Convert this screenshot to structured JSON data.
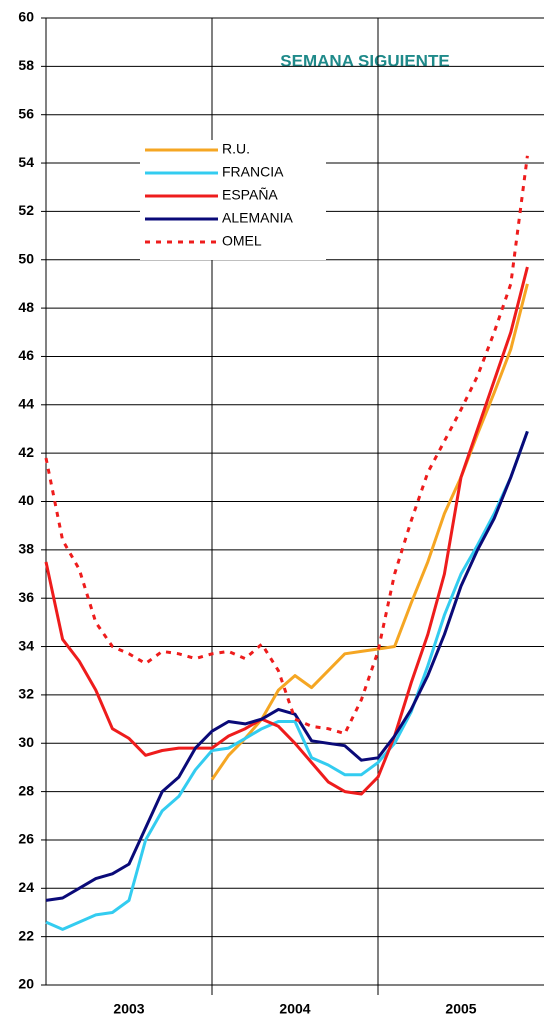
{
  "chart_data": {
    "type": "line",
    "title": "SEMANA SIGUIENTE",
    "title_color": "#1f8a8a",
    "x": [
      2003.0,
      2003.1,
      2003.2,
      2003.3,
      2003.4,
      2003.5,
      2003.6,
      2003.7,
      2003.8,
      2003.9,
      2004.0,
      2004.1,
      2004.2,
      2004.3,
      2004.4,
      2004.5,
      2004.6,
      2004.7,
      2004.8,
      2004.9,
      2005.0,
      2005.1,
      2005.2,
      2005.3,
      2005.4,
      2005.5,
      2005.6,
      2005.7,
      2005.8,
      2005.9
    ],
    "xlim": [
      2003,
      2006
    ],
    "xticks": [
      {
        "value": 2003.5,
        "label": "2003"
      },
      {
        "value": 2004.5,
        "label": "2004"
      },
      {
        "value": 2005.5,
        "label": "2005"
      }
    ],
    "ylim": [
      20,
      60
    ],
    "yticks": [
      20,
      22,
      24,
      26,
      28,
      30,
      32,
      34,
      36,
      38,
      40,
      42,
      44,
      46,
      48,
      50,
      52,
      54,
      56,
      58,
      60
    ],
    "grid": true,
    "legend": "upper left",
    "series": [
      {
        "name": "R.U.",
        "color": "#f5a623",
        "style": "solid",
        "values": [
          null,
          null,
          null,
          null,
          null,
          null,
          null,
          null,
          null,
          null,
          28.5,
          29.5,
          30.2,
          31.0,
          32.2,
          32.8,
          32.3,
          33.0,
          33.7,
          33.8,
          33.9,
          34.0,
          35.8,
          37.5,
          39.5,
          41.0,
          42.8,
          44.5,
          46.3,
          49.0
        ]
      },
      {
        "name": "FRANCIA",
        "color": "#33ccf0",
        "style": "solid",
        "values": [
          22.6,
          22.3,
          22.6,
          22.9,
          23.0,
          23.5,
          26.0,
          27.2,
          27.8,
          28.9,
          29.7,
          29.8,
          30.2,
          30.6,
          30.9,
          30.9,
          29.4,
          29.1,
          28.7,
          28.7,
          29.2,
          30.0,
          31.3,
          33.2,
          35.3,
          37.0,
          38.2,
          39.5,
          41.0,
          42.9
        ]
      },
      {
        "name": "ESPAÑA",
        "color": "#ee1c1c",
        "style": "solid",
        "values": [
          37.5,
          34.3,
          33.4,
          32.2,
          30.6,
          30.2,
          29.5,
          29.7,
          29.8,
          29.8,
          29.8,
          30.3,
          30.6,
          31.0,
          30.7,
          30.0,
          29.2,
          28.4,
          28.0,
          27.9,
          28.6,
          30.3,
          32.5,
          34.5,
          37.0,
          41.0,
          43.0,
          45.0,
          47.0,
          49.7
        ]
      },
      {
        "name": "ALEMANIA",
        "color": "#0a0a78",
        "style": "solid",
        "values": [
          23.5,
          23.6,
          24.0,
          24.4,
          24.6,
          25.0,
          26.5,
          28.0,
          28.6,
          29.8,
          30.5,
          30.9,
          30.8,
          31.0,
          31.4,
          31.2,
          30.1,
          30.0,
          29.9,
          29.3,
          29.4,
          30.3,
          31.4,
          32.8,
          34.5,
          36.5,
          38.0,
          39.3,
          41.0,
          42.9
        ]
      },
      {
        "name": "OMEL",
        "color": "#ee1c1c",
        "style": "dotted",
        "values": [
          41.8,
          38.4,
          37.2,
          35.0,
          34.0,
          33.7,
          33.3,
          33.8,
          33.7,
          33.5,
          33.7,
          33.8,
          33.5,
          34.1,
          33.0,
          31.0,
          30.7,
          30.6,
          30.4,
          31.8,
          33.8,
          37.0,
          39.2,
          41.2,
          42.5,
          43.8,
          45.2,
          47.0,
          49.0,
          54.3
        ]
      }
    ]
  }
}
